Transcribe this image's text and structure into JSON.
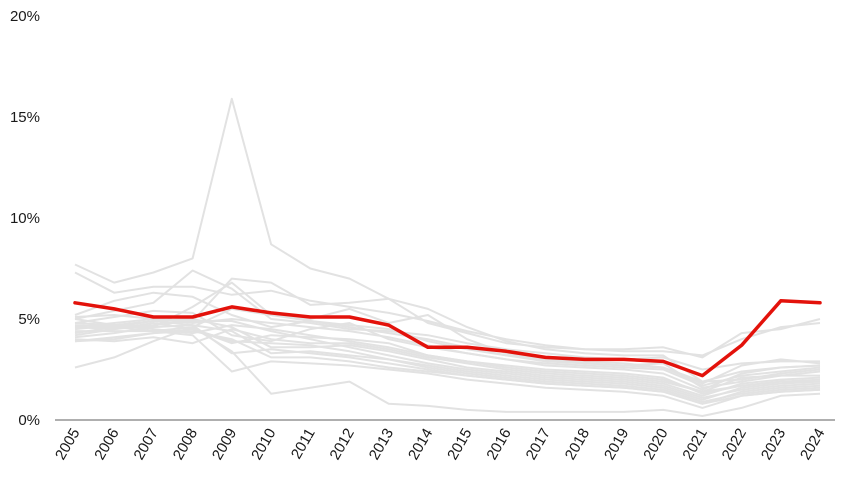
{
  "chart_data": {
    "type": "line",
    "x": [
      "2005",
      "2006",
      "2007",
      "2008",
      "2009",
      "2010",
      "2011",
      "2012",
      "2013",
      "2014",
      "2015",
      "2016",
      "2017",
      "2018",
      "2019",
      "2020",
      "2021",
      "2022",
      "2023",
      "2024"
    ],
    "ylim": [
      0,
      20
    ],
    "yticks": [
      0,
      5,
      10,
      15,
      20
    ],
    "ytick_labels": [
      "0%",
      "5%",
      "10%",
      "15%",
      "20%"
    ],
    "grid": false,
    "legend": "none",
    "highlight_color": "#e3120b",
    "background_series_color": "#e2e2e2",
    "highlight_series": {
      "values": [
        5.8,
        5.5,
        5.1,
        5.1,
        5.6,
        5.3,
        5.1,
        5.1,
        4.7,
        3.6,
        3.6,
        3.4,
        3.1,
        3.0,
        3.0,
        2.9,
        2.2,
        3.7,
        5.9,
        5.8
      ]
    },
    "background_series": [
      {
        "values": [
          7.7,
          6.8,
          7.3,
          8.0,
          15.9,
          8.7,
          7.5,
          7.0,
          6.0,
          4.8,
          4.3,
          3.8,
          3.6,
          3.5,
          3.5,
          3.6,
          3.1,
          4.3,
          4.5,
          5.0
        ]
      },
      {
        "values": [
          7.3,
          6.3,
          6.6,
          6.6,
          6.2,
          6.4,
          5.9,
          5.6,
          5.3,
          4.9,
          4.4,
          4.0,
          3.7,
          3.5,
          3.4,
          3.4,
          3.2,
          4.0,
          4.6,
          4.8
        ]
      },
      {
        "values": [
          5.0,
          5.4,
          5.8,
          7.4,
          6.5,
          5.0,
          4.8,
          4.5,
          4.4,
          4.2,
          3.8,
          3.5,
          3.3,
          3.1,
          3.0,
          3.1,
          2.5,
          2.8,
          2.9,
          2.9
        ]
      },
      {
        "values": [
          5.2,
          5.9,
          6.3,
          6.1,
          5.2,
          4.6,
          4.9,
          4.6,
          4.3,
          4.0,
          3.6,
          3.2,
          3.0,
          2.9,
          2.8,
          2.6,
          1.8,
          2.7,
          3.0,
          2.8
        ]
      },
      {
        "values": [
          4.8,
          5.1,
          5.4,
          5.3,
          4.2,
          3.9,
          4.5,
          4.8,
          4.0,
          3.6,
          3.3,
          3.0,
          2.7,
          2.6,
          2.5,
          2.3,
          1.5,
          2.3,
          2.6,
          2.7
        ]
      },
      {
        "values": [
          4.6,
          4.5,
          4.8,
          4.5,
          3.8,
          4.2,
          4.1,
          4.0,
          3.8,
          3.2,
          2.9,
          2.6,
          2.4,
          2.3,
          2.2,
          2.0,
          1.4,
          2.1,
          2.2,
          2.4
        ]
      },
      {
        "values": [
          4.3,
          4.6,
          4.9,
          5.0,
          4.6,
          3.6,
          3.6,
          3.7,
          3.4,
          3.0,
          2.6,
          2.4,
          2.2,
          2.1,
          2.0,
          1.8,
          1.2,
          1.8,
          2.0,
          2.1
        ]
      },
      {
        "values": [
          4.1,
          4.3,
          4.6,
          4.7,
          4.4,
          3.3,
          3.4,
          3.2,
          3.0,
          2.7,
          2.4,
          2.2,
          2.0,
          1.9,
          1.8,
          1.6,
          1.0,
          1.6,
          1.8,
          1.9
        ]
      },
      {
        "values": [
          3.9,
          4.0,
          4.3,
          4.4,
          4.0,
          3.1,
          3.1,
          2.9,
          2.6,
          2.4,
          2.2,
          2.0,
          1.8,
          1.7,
          1.6,
          1.4,
          0.8,
          1.4,
          1.6,
          1.7
        ]
      },
      {
        "values": [
          4.4,
          4.4,
          4.4,
          4.2,
          2.4,
          2.9,
          2.8,
          2.7,
          2.5,
          2.3,
          2.0,
          1.8,
          1.6,
          1.5,
          1.4,
          1.2,
          0.6,
          1.2,
          1.4,
          1.5
        ]
      },
      {
        "values": [
          4.6,
          4.8,
          5.0,
          4.9,
          7.0,
          6.8,
          5.7,
          5.8,
          6.0,
          5.5,
          4.6,
          3.9,
          3.5,
          3.3,
          3.2,
          3.2,
          1.9,
          2.0,
          2.3,
          2.5
        ]
      },
      {
        "values": [
          5.0,
          4.7,
          4.6,
          5.6,
          6.8,
          5.2,
          5.0,
          5.5,
          4.8,
          5.2,
          4.0,
          3.3,
          3.0,
          2.8,
          2.7,
          2.8,
          1.6,
          1.9,
          2.2,
          2.2
        ]
      },
      {
        "values": [
          2.6,
          3.1,
          3.9,
          4.6,
          3.4,
          1.3,
          1.6,
          1.9,
          0.8,
          0.7,
          0.5,
          0.4,
          0.4,
          0.4,
          0.4,
          0.5,
          0.2,
          0.6,
          1.2,
          1.3
        ]
      },
      {
        "values": [
          4.8,
          4.7,
          4.5,
          4.3,
          4.7,
          4.5,
          4.2,
          3.9,
          3.6,
          3.2,
          2.9,
          2.7,
          2.5,
          2.4,
          2.3,
          2.1,
          1.3,
          1.7,
          1.9,
          2.0
        ]
      },
      {
        "values": [
          4.2,
          4.5,
          4.7,
          4.9,
          4.9,
          4.4,
          4.0,
          3.6,
          3.2,
          2.8,
          2.5,
          2.3,
          2.1,
          2.0,
          1.9,
          1.7,
          1.1,
          1.5,
          1.7,
          1.8
        ]
      },
      {
        "values": [
          3.9,
          4.1,
          4.3,
          4.5,
          3.9,
          3.8,
          3.7,
          3.4,
          3.0,
          2.6,
          2.3,
          2.1,
          1.9,
          1.8,
          1.7,
          1.5,
          0.9,
          1.3,
          1.5,
          1.6
        ]
      },
      {
        "values": [
          4.5,
          4.7,
          4.9,
          4.7,
          3.3,
          3.5,
          3.3,
          3.1,
          2.8,
          2.5,
          2.2,
          2.0,
          1.8,
          1.7,
          1.6,
          1.4,
          0.8,
          1.2,
          1.4,
          1.5
        ]
      },
      {
        "values": [
          5.1,
          5.2,
          5.0,
          4.8,
          5.0,
          4.8,
          4.6,
          4.4,
          4.1,
          3.7,
          3.3,
          3.0,
          2.8,
          2.7,
          2.6,
          2.5,
          1.7,
          2.2,
          2.4,
          2.6
        ]
      },
      {
        "values": [
          4.0,
          3.9,
          4.1,
          3.8,
          4.5,
          4.0,
          3.8,
          3.8,
          3.5,
          3.1,
          2.8,
          2.5,
          2.3,
          2.2,
          2.1,
          1.9,
          1.4,
          1.7,
          1.9,
          1.9
        ]
      },
      {
        "values": [
          4.7,
          4.6,
          4.4,
          4.6,
          5.5,
          5.2,
          4.9,
          4.7,
          4.5,
          3.9,
          3.5,
          3.2,
          2.9,
          2.8,
          2.7,
          2.6,
          1.9,
          2.4,
          2.6,
          2.7
        ]
      }
    ]
  }
}
